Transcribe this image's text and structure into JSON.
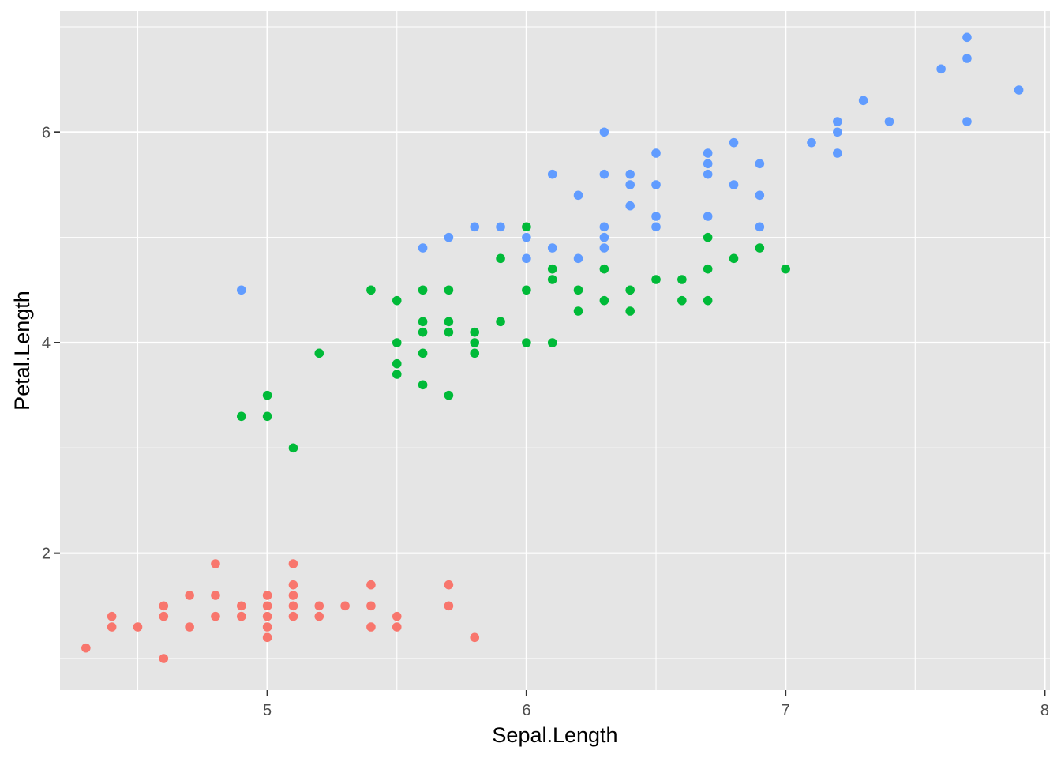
{
  "chart_data": {
    "type": "scatter",
    "xlabel": "Sepal.Length",
    "ylabel": "Petal.Length",
    "xlim": [
      4.2,
      8.02
    ],
    "ylim": [
      0.7,
      7.15
    ],
    "x_ticks": [
      5,
      6,
      7,
      8
    ],
    "y_ticks": [
      2,
      4,
      6
    ],
    "x_minor": [
      4.5,
      5.5,
      6.5,
      7.5
    ],
    "y_minor": [
      1,
      3,
      5,
      7
    ],
    "grid": true,
    "legend": "none",
    "background": "#e5e5e5",
    "series": [
      {
        "color": "#f8766d",
        "points": [
          [
            4.3,
            1.1
          ],
          [
            4.4,
            1.4
          ],
          [
            4.4,
            1.3
          ],
          [
            4.5,
            1.3
          ],
          [
            4.6,
            1.5
          ],
          [
            4.6,
            1.4
          ],
          [
            4.6,
            1.0
          ],
          [
            4.7,
            1.6
          ],
          [
            4.7,
            1.3
          ],
          [
            4.8,
            1.9
          ],
          [
            4.8,
            1.6
          ],
          [
            4.8,
            1.4
          ],
          [
            4.9,
            1.5
          ],
          [
            4.9,
            1.4
          ],
          [
            5.0,
            1.6
          ],
          [
            5.0,
            1.5
          ],
          [
            5.0,
            1.4
          ],
          [
            5.0,
            1.3
          ],
          [
            5.0,
            1.2
          ],
          [
            5.1,
            1.9
          ],
          [
            5.1,
            1.7
          ],
          [
            5.1,
            1.6
          ],
          [
            5.1,
            1.5
          ],
          [
            5.1,
            1.4
          ],
          [
            5.2,
            1.5
          ],
          [
            5.2,
            1.4
          ],
          [
            5.3,
            1.5
          ],
          [
            5.4,
            1.7
          ],
          [
            5.4,
            1.5
          ],
          [
            5.4,
            1.3
          ],
          [
            5.5,
            1.4
          ],
          [
            5.5,
            1.3
          ],
          [
            5.7,
            1.7
          ],
          [
            5.7,
            1.5
          ],
          [
            5.8,
            1.2
          ]
        ]
      },
      {
        "color": "#00ba38",
        "points": [
          [
            4.9,
            3.3
          ],
          [
            5.0,
            3.5
          ],
          [
            5.0,
            3.3
          ],
          [
            5.1,
            3.0
          ],
          [
            5.2,
            3.9
          ],
          [
            5.4,
            4.5
          ],
          [
            5.5,
            4.4
          ],
          [
            5.5,
            4.0
          ],
          [
            5.5,
            3.8
          ],
          [
            5.5,
            3.7
          ],
          [
            5.6,
            4.5
          ],
          [
            5.6,
            4.2
          ],
          [
            5.6,
            4.1
          ],
          [
            5.6,
            3.9
          ],
          [
            5.6,
            3.6
          ],
          [
            5.7,
            4.5
          ],
          [
            5.7,
            4.2
          ],
          [
            5.7,
            4.1
          ],
          [
            5.7,
            3.5
          ],
          [
            5.8,
            4.1
          ],
          [
            5.8,
            4.0
          ],
          [
            5.8,
            3.9
          ],
          [
            5.9,
            4.8
          ],
          [
            5.9,
            4.2
          ],
          [
            6.0,
            5.1
          ],
          [
            6.0,
            4.5
          ],
          [
            6.0,
            4.0
          ],
          [
            6.1,
            4.7
          ],
          [
            6.1,
            4.6
          ],
          [
            6.1,
            4.0
          ],
          [
            6.2,
            4.5
          ],
          [
            6.2,
            4.3
          ],
          [
            6.3,
            4.7
          ],
          [
            6.3,
            4.4
          ],
          [
            6.4,
            4.5
          ],
          [
            6.4,
            4.3
          ],
          [
            6.5,
            4.6
          ],
          [
            6.6,
            4.6
          ],
          [
            6.6,
            4.4
          ],
          [
            6.7,
            5.0
          ],
          [
            6.7,
            4.7
          ],
          [
            6.7,
            4.4
          ],
          [
            6.8,
            4.8
          ],
          [
            6.9,
            4.9
          ],
          [
            7.0,
            4.7
          ]
        ]
      },
      {
        "color": "#619cff",
        "points": [
          [
            4.9,
            4.5
          ],
          [
            5.6,
            4.9
          ],
          [
            5.7,
            5.0
          ],
          [
            5.8,
            5.1
          ],
          [
            5.9,
            5.1
          ],
          [
            6.0,
            5.0
          ],
          [
            6.0,
            4.8
          ],
          [
            6.1,
            5.6
          ],
          [
            6.1,
            4.9
          ],
          [
            6.2,
            5.4
          ],
          [
            6.2,
            4.8
          ],
          [
            6.3,
            6.0
          ],
          [
            6.3,
            5.6
          ],
          [
            6.3,
            5.1
          ],
          [
            6.3,
            5.0
          ],
          [
            6.3,
            4.9
          ],
          [
            6.4,
            5.6
          ],
          [
            6.4,
            5.5
          ],
          [
            6.4,
            5.3
          ],
          [
            6.5,
            5.8
          ],
          [
            6.5,
            5.5
          ],
          [
            6.5,
            5.2
          ],
          [
            6.5,
            5.1
          ],
          [
            6.7,
            5.8
          ],
          [
            6.7,
            5.7
          ],
          [
            6.7,
            5.6
          ],
          [
            6.7,
            5.2
          ],
          [
            6.8,
            5.9
          ],
          [
            6.8,
            5.5
          ],
          [
            6.9,
            5.7
          ],
          [
            6.9,
            5.4
          ],
          [
            6.9,
            5.1
          ],
          [
            7.1,
            5.9
          ],
          [
            7.2,
            6.1
          ],
          [
            7.2,
            6.0
          ],
          [
            7.2,
            5.8
          ],
          [
            7.3,
            6.3
          ],
          [
            7.4,
            6.1
          ],
          [
            7.6,
            6.6
          ],
          [
            7.7,
            6.9
          ],
          [
            7.7,
            6.7
          ],
          [
            7.7,
            6.1
          ],
          [
            7.9,
            6.4
          ]
        ]
      }
    ]
  }
}
